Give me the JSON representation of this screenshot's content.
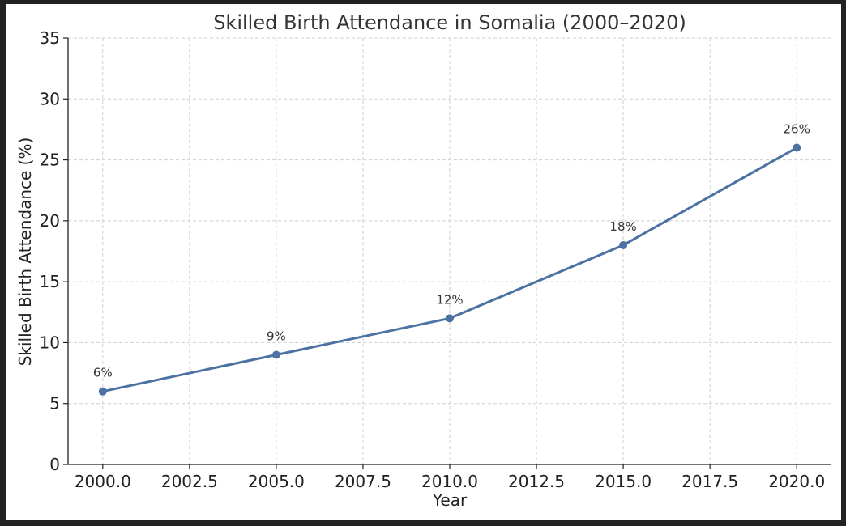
{
  "chart_data": {
    "type": "line",
    "title": "Skilled Birth Attendance in Somalia (2000–2020)",
    "xlabel": "Year",
    "ylabel": "Skilled Birth Attendance (%)",
    "x": [
      2000,
      2005,
      2010,
      2015,
      2020
    ],
    "series": [
      {
        "values": [
          6,
          9,
          12,
          18,
          26
        ],
        "color": "#4c72a4",
        "labels": [
          "6%",
          "9%",
          "12%",
          "18%",
          "26%"
        ]
      }
    ],
    "xlim": [
      1999,
      2021
    ],
    "ylim": [
      0,
      35
    ],
    "xticks": [
      2000,
      2002.5,
      2005,
      2007.5,
      2010,
      2012.5,
      2015,
      2017.5,
      2020
    ],
    "xtick_labels": [
      "2000.0",
      "2002.5",
      "2005.0",
      "2007.5",
      "2010.0",
      "2012.5",
      "2015.0",
      "2017.5",
      "2020.0"
    ],
    "yticks": [
      0,
      5,
      10,
      15,
      20,
      25,
      30,
      35
    ],
    "ytick_labels": [
      "0",
      "5",
      "10",
      "15",
      "20",
      "25",
      "30",
      "35"
    ],
    "grid": true,
    "marker": "circle"
  }
}
